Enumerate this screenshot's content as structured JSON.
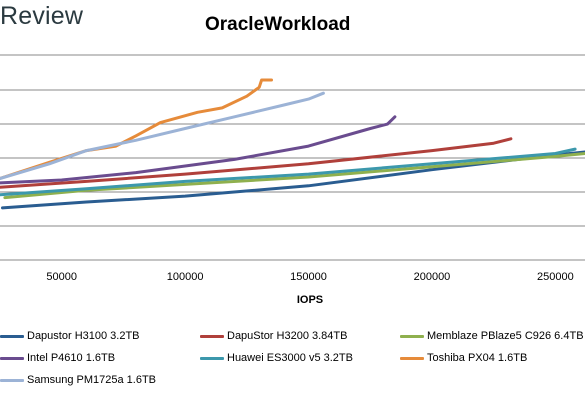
{
  "brand": {
    "text": "Review"
  },
  "chart_data": {
    "type": "line",
    "title": "OracleWorkload",
    "xlabel": "IOPS",
    "ylabel": "",
    "xlim": [
      25000,
      262000
    ],
    "x_ticks": [
      50000,
      100000,
      150000,
      200000,
      250000
    ],
    "y_gridlines": 5,
    "grid": true,
    "legend_position": "bottom",
    "series": [
      {
        "name": "Dapustor H3100 3.2TB",
        "color": "#2a5d91",
        "points": [
          [
            26000,
            0.13
          ],
          [
            60000,
            0.17
          ],
          [
            100000,
            0.21
          ],
          [
            150000,
            0.28
          ],
          [
            200000,
            0.39
          ],
          [
            250000,
            0.49
          ],
          [
            262000,
            0.51
          ]
        ]
      },
      {
        "name": "DapuStor H3200 3.84TB",
        "color": "#b0403b",
        "points": [
          [
            25000,
            0.27
          ],
          [
            60000,
            0.31
          ],
          [
            100000,
            0.36
          ],
          [
            150000,
            0.43
          ],
          [
            200000,
            0.52
          ],
          [
            225000,
            0.57
          ],
          [
            232000,
            0.6
          ]
        ]
      },
      {
        "name": "Memblaze PBlaze5 C926 6.4TB",
        "color": "#8fb04e",
        "points": [
          [
            27000,
            0.2
          ],
          [
            60000,
            0.25
          ],
          [
            100000,
            0.29
          ],
          [
            150000,
            0.34
          ],
          [
            200000,
            0.41
          ],
          [
            250000,
            0.48
          ],
          [
            262000,
            0.5
          ]
        ]
      },
      {
        "name": "Intel P4610 1.6TB",
        "color": "#6a4c8f",
        "points": [
          [
            25000,
            0.3
          ],
          [
            50000,
            0.32
          ],
          [
            80000,
            0.37
          ],
          [
            120000,
            0.46
          ],
          [
            150000,
            0.55
          ],
          [
            175000,
            0.67
          ],
          [
            182000,
            0.7
          ],
          [
            185000,
            0.75
          ]
        ]
      },
      {
        "name": "Huawei ES3000 v5 3.2TB",
        "color": "#3c98ac",
        "points": [
          [
            25000,
            0.22
          ],
          [
            60000,
            0.26
          ],
          [
            100000,
            0.31
          ],
          [
            150000,
            0.36
          ],
          [
            200000,
            0.43
          ],
          [
            250000,
            0.5
          ],
          [
            258000,
            0.53
          ]
        ]
      },
      {
        "name": "Toshiba PX04 1.6TB",
        "color": "#e68b3a",
        "points": [
          [
            25000,
            0.33
          ],
          [
            45000,
            0.44
          ],
          [
            60000,
            0.52
          ],
          [
            72000,
            0.55
          ],
          [
            80000,
            0.62
          ],
          [
            90000,
            0.71
          ],
          [
            105000,
            0.78
          ],
          [
            115000,
            0.81
          ],
          [
            125000,
            0.89
          ],
          [
            130000,
            0.95
          ],
          [
            131000,
            1.0
          ],
          [
            135000,
            1.0
          ]
        ]
      },
      {
        "name": "Samsung PM1725a 1.6TB",
        "color": "#9cb3d6",
        "points": [
          [
            25000,
            0.33
          ],
          [
            45000,
            0.43
          ],
          [
            60000,
            0.52
          ],
          [
            80000,
            0.59
          ],
          [
            100000,
            0.67
          ],
          [
            120000,
            0.75
          ],
          [
            140000,
            0.83
          ],
          [
            150000,
            0.87
          ],
          [
            156000,
            0.91
          ]
        ]
      }
    ]
  }
}
